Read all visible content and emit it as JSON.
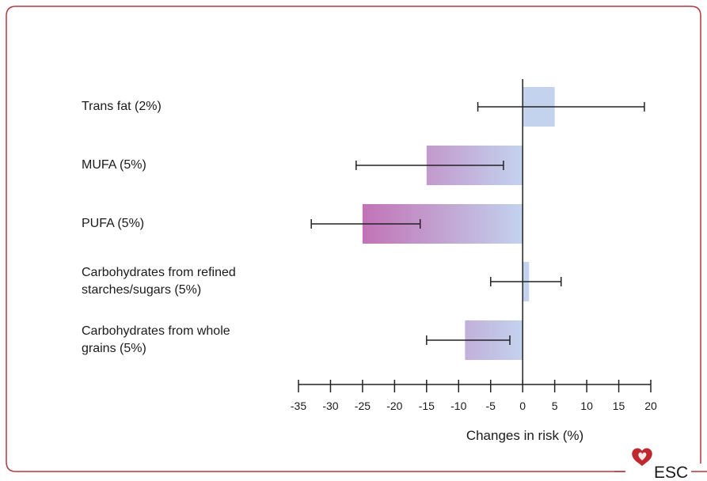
{
  "chart_data": {
    "type": "bar",
    "orientation": "horizontal",
    "categories": [
      "Trans fat (2%)",
      "MUFA (5%)",
      "PUFA (5%)",
      "Carbohydrates from refined\nstarches/sugars (5%)",
      "Carbohydrates from whole\ngrains (5%)"
    ],
    "values": [
      5,
      -15,
      -25,
      1,
      -9
    ],
    "error_low": [
      -7,
      -26,
      -33,
      -5,
      -15
    ],
    "error_high": [
      19,
      -3,
      -16,
      6,
      -2
    ],
    "xlabel": "Changes in risk (%)",
    "xlim": [
      -35,
      20
    ],
    "xticks": [
      -35,
      -30,
      -25,
      -20,
      -15,
      -10,
      -5,
      0,
      5,
      10,
      15,
      20
    ],
    "xtick_labels": [
      "-35",
      "-30",
      "-25",
      "-20",
      "-15",
      "-10",
      "-5",
      "0",
      "5",
      "10",
      "15",
      "20"
    ],
    "grid": false,
    "colors": {
      "bar_light": "#c3d3ee",
      "bar_dark": "#c173b6",
      "frame": "#b5363f",
      "axis": "#222222",
      "logo": "#c0282f"
    }
  },
  "logo": {
    "text": "ESC",
    "icon": "heart-icon"
  }
}
